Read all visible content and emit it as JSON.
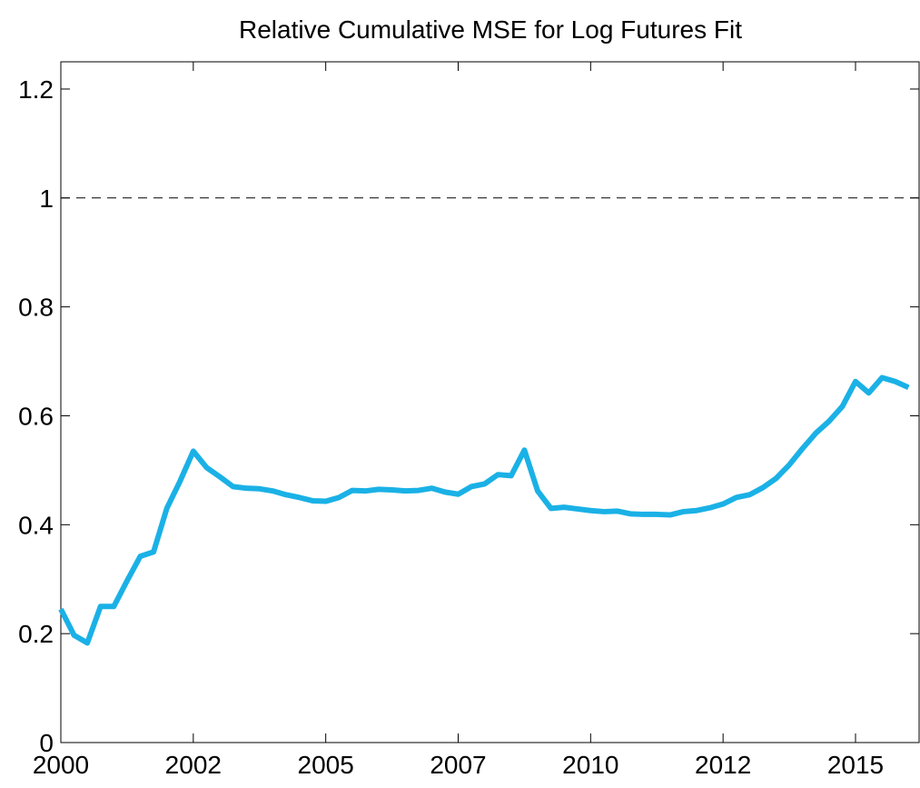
{
  "chart_data": {
    "type": "line",
    "title": "Relative Cumulative MSE for Log Futures Fit",
    "x": [
      2000,
      2000.25,
      2000.5,
      2000.75,
      2001,
      2001.25,
      2001.5,
      2001.75,
      2002,
      2002.25,
      2002.5,
      2002.75,
      2003,
      2003.25,
      2003.5,
      2003.75,
      2004,
      2004.25,
      2004.5,
      2004.75,
      2005,
      2005.25,
      2005.5,
      2005.75,
      2006,
      2006.25,
      2006.5,
      2006.75,
      2007,
      2007.25,
      2007.5,
      2007.75,
      2008,
      2008.25,
      2008.5,
      2008.75,
      2009,
      2009.25,
      2009.5,
      2009.75,
      2010,
      2010.25,
      2010.5,
      2010.75,
      2011,
      2011.25,
      2011.5,
      2011.75,
      2012,
      2012.25,
      2012.5,
      2012.75,
      2013,
      2013.25,
      2013.5,
      2013.75,
      2014,
      2014.25,
      2014.5,
      2014.75,
      2015,
      2015.25,
      2015.5,
      2015.75,
      2016
    ],
    "series": [
      {
        "color": "#1ab1e6",
        "values": [
          0.245,
          0.197,
          0.183,
          0.25,
          0.25,
          0.297,
          0.342,
          0.35,
          0.43,
          0.48,
          0.535,
          0.505,
          0.488,
          0.47,
          0.467,
          0.466,
          0.462,
          0.455,
          0.45,
          0.444,
          0.443,
          0.45,
          0.463,
          0.462,
          0.465,
          0.464,
          0.462,
          0.463,
          0.467,
          0.46,
          0.456,
          0.47,
          0.475,
          0.492,
          0.49,
          0.537,
          0.462,
          0.43,
          0.432,
          0.429,
          0.426,
          0.424,
          0.425,
          0.42,
          0.419,
          0.419,
          0.418,
          0.424,
          0.426,
          0.431,
          0.438,
          0.45,
          0.455,
          0.468,
          0.485,
          0.51,
          0.54,
          0.568,
          0.59,
          0.617,
          0.663,
          0.642,
          0.67,
          0.663,
          0.652
        ]
      }
    ],
    "reference_line": 1,
    "xlim": [
      2000,
      2016.2
    ],
    "xticks": [
      {
        "value": 2000,
        "label": "2000"
      },
      {
        "value": 2002.5,
        "label": "2002"
      },
      {
        "value": 2005,
        "label": "2005"
      },
      {
        "value": 2007.5,
        "label": "2007"
      },
      {
        "value": 2010,
        "label": "2010"
      },
      {
        "value": 2012.5,
        "label": "2012"
      },
      {
        "value": 2015,
        "label": "2015"
      }
    ],
    "ylim": [
      0,
      1.25
    ],
    "yticks": [
      0,
      0.2,
      0.4,
      0.6,
      0.8,
      1,
      1.2
    ]
  }
}
